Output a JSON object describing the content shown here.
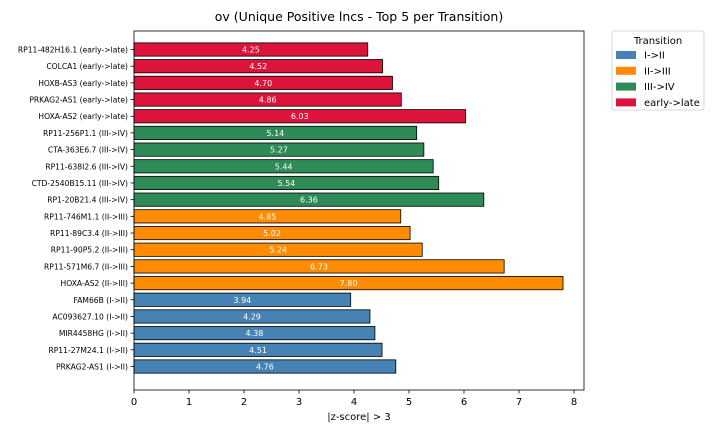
{
  "chart_data": {
    "type": "bar",
    "orientation": "horizontal",
    "title": "ov (Unique Positive lncs - Top 5 per Transition)",
    "xlabel": "|z-score| > 3",
    "ylabel": "",
    "xlim": [
      0,
      8.2
    ],
    "xticks": [
      0,
      1,
      2,
      3,
      4,
      5,
      6,
      7,
      8
    ],
    "grid": false,
    "legend": {
      "title": "Transition",
      "placement": "outside-top-right",
      "entries": [
        {
          "label": "I->II",
          "color": "#4682b4"
        },
        {
          "label": "II->III",
          "color": "#ff8c00"
        },
        {
          "label": "III->IV",
          "color": "#2e8b57"
        },
        {
          "label": "early->late",
          "color": "#dc143c"
        }
      ]
    },
    "bars": [
      {
        "label": "RP11-482H16.1 (early->late)",
        "value": 4.25,
        "value_label": "4.25",
        "group": "early->late"
      },
      {
        "label": "COLCA1 (early->late)",
        "value": 4.52,
        "value_label": "4.52",
        "group": "early->late"
      },
      {
        "label": "HOXB-AS3 (early->late)",
        "value": 4.7,
        "value_label": "4.70",
        "group": "early->late"
      },
      {
        "label": "PRKAG2-AS1 (early->late)",
        "value": 4.86,
        "value_label": "4.86",
        "group": "early->late"
      },
      {
        "label": "HOXA-AS2 (early->late)",
        "value": 6.03,
        "value_label": "6.03",
        "group": "early->late"
      },
      {
        "label": "RP11-256P1.1 (III->IV)",
        "value": 5.14,
        "value_label": "5.14",
        "group": "III->IV"
      },
      {
        "label": "CTA-363E6.7 (III->IV)",
        "value": 5.27,
        "value_label": "5.27",
        "group": "III->IV"
      },
      {
        "label": "RP11-638I2.6 (III->IV)",
        "value": 5.44,
        "value_label": "5.44",
        "group": "III->IV"
      },
      {
        "label": "CTD-2540B15.11 (III->IV)",
        "value": 5.54,
        "value_label": "5.54",
        "group": "III->IV"
      },
      {
        "label": "RP1-20B21.4 (III->IV)",
        "value": 6.36,
        "value_label": "6.36",
        "group": "III->IV"
      },
      {
        "label": "RP11-746M1.1 (II->III)",
        "value": 4.85,
        "value_label": "4.85",
        "group": "II->III"
      },
      {
        "label": "RP11-89C3.4 (II->III)",
        "value": 5.02,
        "value_label": "5.02",
        "group": "II->III"
      },
      {
        "label": "RP11-90P5.2 (II->III)",
        "value": 5.24,
        "value_label": "5.24",
        "group": "II->III"
      },
      {
        "label": "RP11-571M6.7 (II->III)",
        "value": 6.73,
        "value_label": "6.73",
        "group": "II->III"
      },
      {
        "label": "HOXA-AS2 (II->III)",
        "value": 7.8,
        "value_label": "7.80",
        "group": "II->III"
      },
      {
        "label": "FAM66B (I->II)",
        "value": 3.94,
        "value_label": "3.94",
        "group": "I->II"
      },
      {
        "label": "AC093627.10 (I->II)",
        "value": 4.29,
        "value_label": "4.29",
        "group": "I->II"
      },
      {
        "label": "MIR4458HG (I->II)",
        "value": 4.38,
        "value_label": "4.38",
        "group": "I->II"
      },
      {
        "label": "RP11-27M24.1 (I->II)",
        "value": 4.51,
        "value_label": "4.51",
        "group": "I->II"
      },
      {
        "label": "PRKAG2-AS1 (I->II)",
        "value": 4.76,
        "value_label": "4.76",
        "group": "I->II"
      }
    ]
  }
}
